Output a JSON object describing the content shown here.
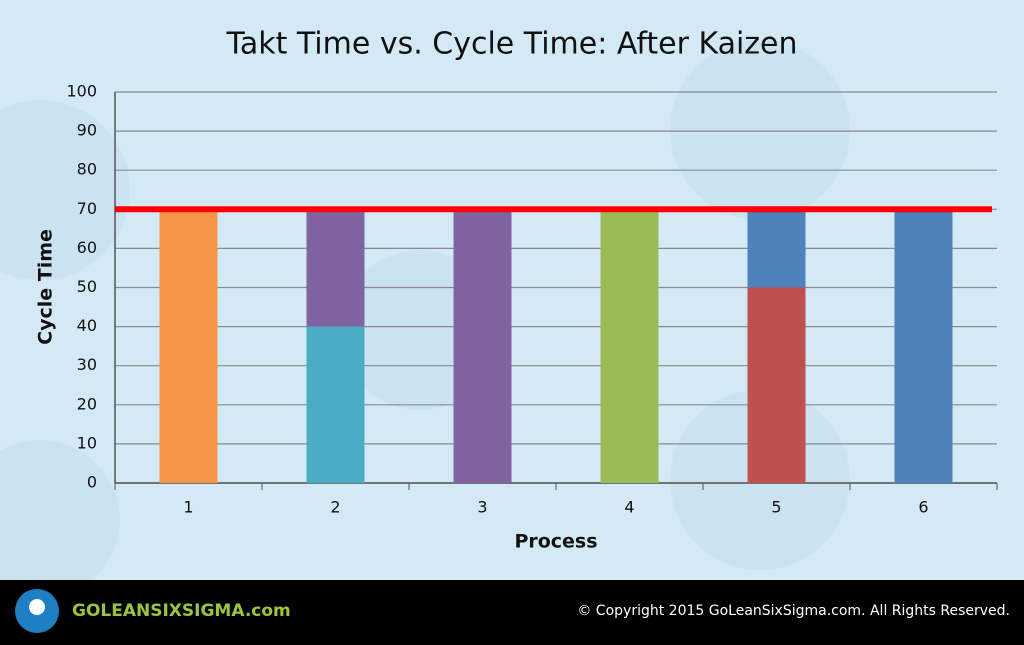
{
  "chart_data": {
    "type": "stacked_bar",
    "title": "Takt Time vs. Cycle Time: After Kaizen",
    "x_label": "Process",
    "y_label": "Cycle Time",
    "categories": [
      "1",
      "2",
      "3",
      "4",
      "5",
      "6"
    ],
    "series": [
      {
        "colors": [
          "#f79646",
          "#4bacc6",
          "#8064a2",
          "#9bbb59",
          "#c0504d",
          "#4f81bd"
        ],
        "values": [
          70,
          40,
          70,
          70,
          50,
          70
        ]
      },
      {
        "colors": [
          null,
          "#8064a2",
          null,
          null,
          "#4f81bd",
          null
        ],
        "values": [
          null,
          30,
          null,
          null,
          20,
          null
        ]
      }
    ],
    "takt_time": 70,
    "takt_color": "#ff0000",
    "ylim": [
      0,
      100
    ],
    "yticks": [
      0,
      10,
      20,
      30,
      40,
      50,
      60,
      70,
      80,
      90,
      100
    ],
    "grid": true
  },
  "footer": {
    "logo": "GOLEANSIXSIGMA.com",
    "copyright": "© Copyright 2015 GoLeanSixSigma.com. All Rights Reserved."
  }
}
